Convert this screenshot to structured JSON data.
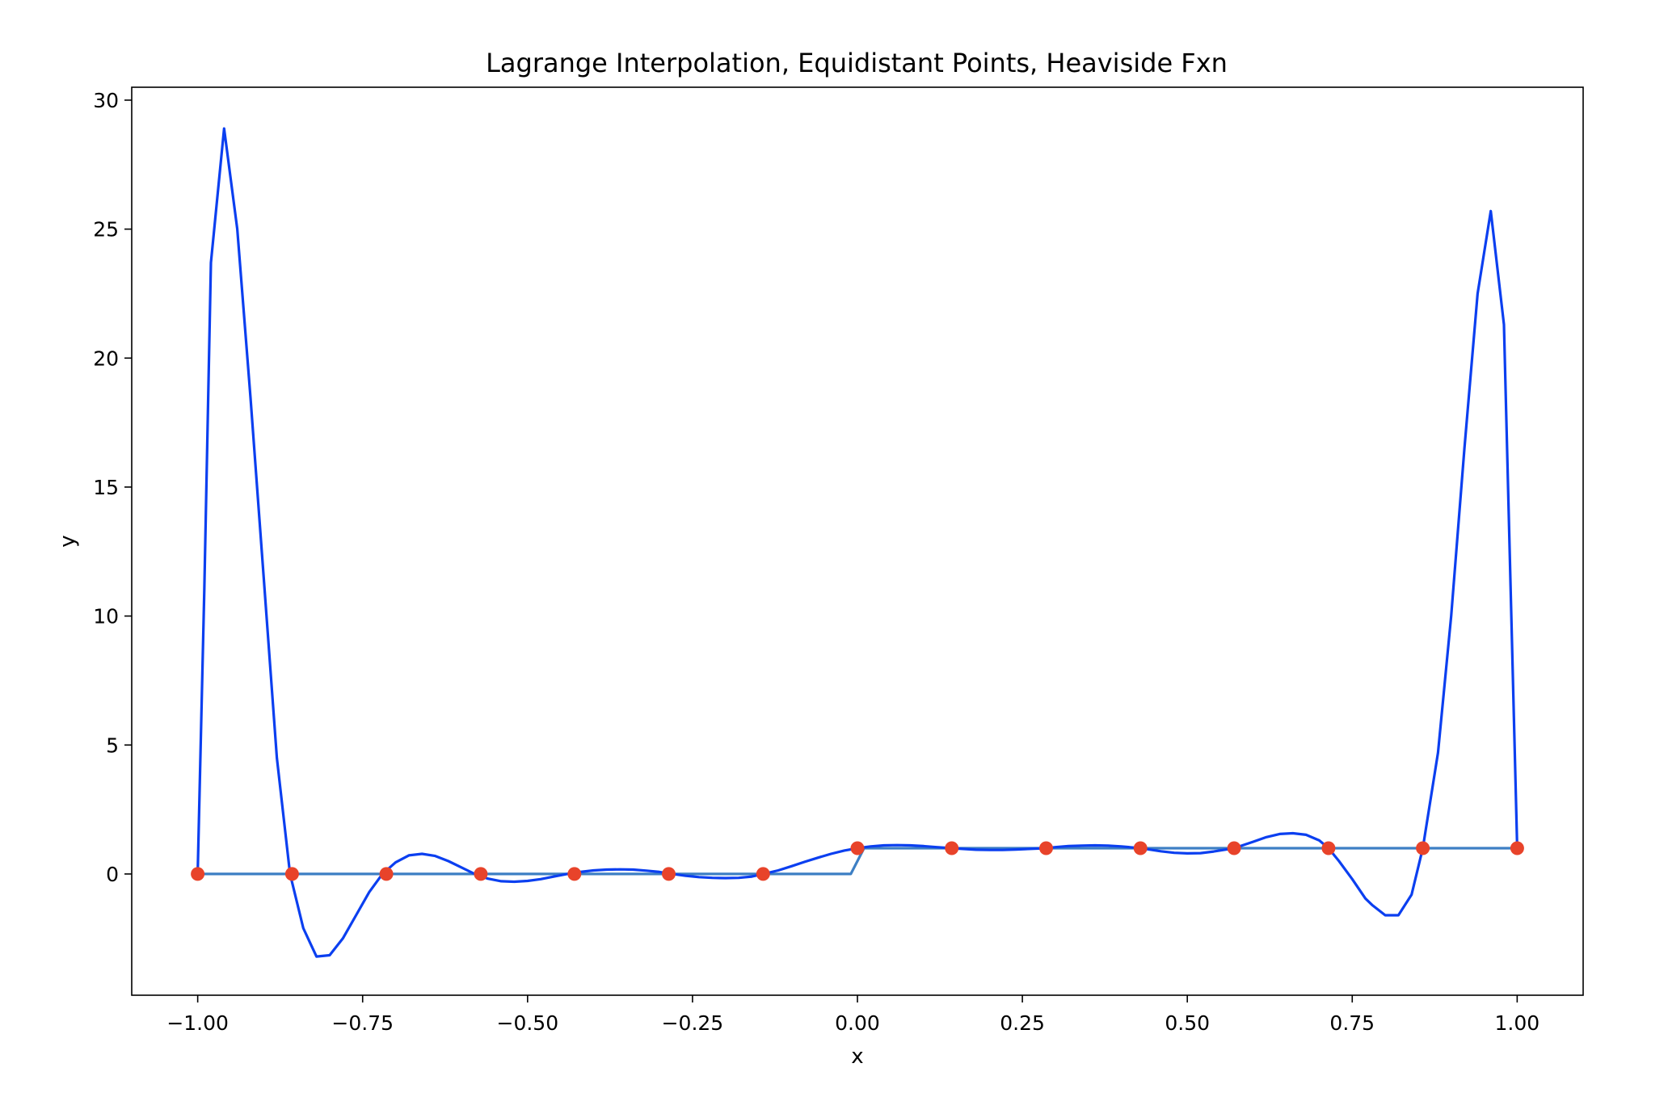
{
  "chart_data": {
    "type": "line",
    "title": "Lagrange Interpolation, Equidistant Points, Heaviside Fxn",
    "xlabel": "x",
    "ylabel": "y",
    "xlim": [
      -1.1,
      1.1
    ],
    "ylim": [
      -4.7,
      30.5
    ],
    "grid": false,
    "legend": "none",
    "x_ticks": [
      {
        "value": -1.0,
        "label": "−1.00"
      },
      {
        "value": -0.75,
        "label": "−0.75"
      },
      {
        "value": -0.5,
        "label": "−0.50"
      },
      {
        "value": -0.25,
        "label": "−0.25"
      },
      {
        "value": 0.0,
        "label": "0.00"
      },
      {
        "value": 0.25,
        "label": "0.25"
      },
      {
        "value": 0.5,
        "label": "0.50"
      },
      {
        "value": 0.75,
        "label": "0.75"
      },
      {
        "value": 1.0,
        "label": "1.00"
      }
    ],
    "y_ticks": [
      {
        "value": 0,
        "label": "0"
      },
      {
        "value": 5,
        "label": "5"
      },
      {
        "value": 10,
        "label": "10"
      },
      {
        "value": 15,
        "label": "15"
      },
      {
        "value": 20,
        "label": "20"
      },
      {
        "value": 25,
        "label": "25"
      },
      {
        "value": 30,
        "label": "30"
      }
    ],
    "series": [
      {
        "role": "interpolant",
        "color": "#0b3ff0",
        "x": [
          -1.0,
          -0.99,
          -0.98,
          -0.96,
          -0.94,
          -0.92,
          -0.9,
          -0.88,
          -0.86,
          -0.84,
          -0.82,
          -0.8,
          -0.78,
          -0.76,
          -0.74,
          -0.72,
          -0.7,
          -0.68,
          -0.66,
          -0.64,
          -0.62,
          -0.6,
          -0.58,
          -0.56,
          -0.54,
          -0.52,
          -0.5,
          -0.48,
          -0.46,
          -0.44,
          -0.42,
          -0.4,
          -0.38,
          -0.36,
          -0.34,
          -0.32,
          -0.3,
          -0.28,
          -0.26,
          -0.24,
          -0.22,
          -0.2,
          -0.18,
          -0.16,
          -0.143,
          -0.12,
          -0.1,
          -0.08,
          -0.06,
          -0.04,
          -0.02,
          0.0,
          0.02,
          0.04,
          0.06,
          0.08,
          0.1,
          0.12,
          0.143,
          0.16,
          0.18,
          0.2,
          0.22,
          0.24,
          0.26,
          0.286,
          0.3,
          0.32,
          0.34,
          0.36,
          0.38,
          0.4,
          0.429,
          0.44,
          0.46,
          0.48,
          0.5,
          0.52,
          0.54,
          0.571,
          0.6,
          0.62,
          0.64,
          0.66,
          0.68,
          0.7,
          0.714,
          0.73,
          0.75,
          0.77,
          0.78,
          0.8,
          0.82,
          0.84,
          0.857,
          0.88,
          0.9,
          0.92,
          0.94,
          0.96,
          0.98,
          1.0
        ],
        "y": [
          0.0,
          11.0,
          23.7,
          28.9,
          25.0,
          18.5,
          11.5,
          4.5,
          0.0,
          -2.1,
          -3.2,
          -3.15,
          -2.5,
          -1.6,
          -0.7,
          0.0,
          0.45,
          0.72,
          0.78,
          0.7,
          0.5,
          0.25,
          0.0,
          -0.18,
          -0.28,
          -0.3,
          -0.27,
          -0.2,
          -0.1,
          0.0,
          0.08,
          0.14,
          0.17,
          0.18,
          0.17,
          0.13,
          0.08,
          0.0,
          -0.07,
          -0.12,
          -0.15,
          -0.16,
          -0.15,
          -0.1,
          0.0,
          0.14,
          0.3,
          0.47,
          0.63,
          0.78,
          0.91,
          1.0,
          1.07,
          1.11,
          1.12,
          1.11,
          1.08,
          1.04,
          1.0,
          0.97,
          0.94,
          0.93,
          0.93,
          0.95,
          0.97,
          1.0,
          1.04,
          1.08,
          1.1,
          1.11,
          1.1,
          1.07,
          1.0,
          0.96,
          0.88,
          0.82,
          0.8,
          0.81,
          0.87,
          1.0,
          1.25,
          1.43,
          1.55,
          1.58,
          1.52,
          1.3,
          1.0,
          0.5,
          -0.2,
          -0.95,
          -1.2,
          -1.6,
          -1.6,
          -0.8,
          1.0,
          4.7,
          10.0,
          16.5,
          22.5,
          25.7,
          21.3,
          1.0
        ]
      },
      {
        "role": "heaviside",
        "color": "#3d7fc4",
        "x": [
          -1.0,
          -0.01,
          0.01,
          1.0
        ],
        "y": [
          0.0,
          0.0,
          1.0,
          1.0
        ]
      }
    ],
    "points": {
      "color": "#e8432a",
      "x": [
        -1.0,
        -0.857,
        -0.714,
        -0.571,
        -0.429,
        -0.286,
        -0.143,
        0.0,
        0.143,
        0.286,
        0.429,
        0.571,
        0.714,
        0.857,
        1.0
      ],
      "y": [
        0,
        0,
        0,
        0,
        0,
        0,
        0,
        1,
        1,
        1,
        1,
        1,
        1,
        1,
        1
      ]
    }
  }
}
